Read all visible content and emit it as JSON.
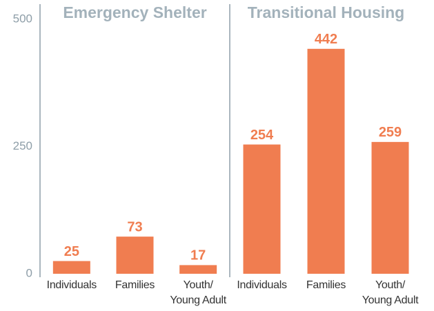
{
  "chart_data": [
    {
      "type": "bar",
      "title": "Emergency Shelter",
      "categories": [
        "Individuals",
        "Families",
        "Youth/\nYoung Adult"
      ],
      "values": [
        25,
        73,
        17
      ],
      "color": "#f07d50",
      "ylim": [
        0,
        500
      ],
      "yticks": [
        0,
        250,
        500
      ]
    },
    {
      "type": "bar",
      "title": "Transitional Housing",
      "categories": [
        "Individuals",
        "Families",
        "Youth/\nYoung Adult"
      ],
      "values": [
        254,
        442,
        259
      ],
      "color": "#f07d50",
      "ylim": [
        0,
        500
      ]
    }
  ]
}
